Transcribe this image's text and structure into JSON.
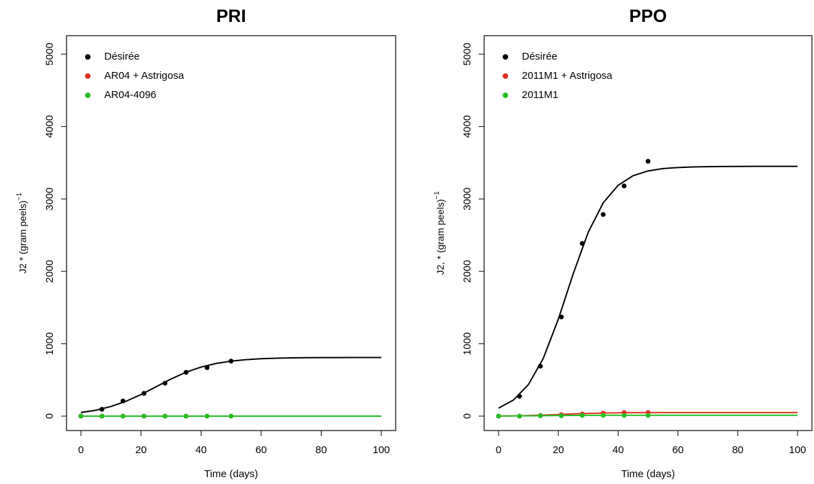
{
  "chart_data": [
    {
      "type": "line",
      "title": "PRI",
      "xlabel": "Time (days)",
      "ylabel": "J2 * (gram peels)",
      "ylabel_sup": "−1",
      "xlim": [
        0,
        100
      ],
      "xticks": [
        0,
        20,
        40,
        60,
        80,
        100
      ],
      "ylim": [
        0,
        5000
      ],
      "yticks": [
        0,
        1000,
        2000,
        3000,
        4000,
        5000
      ],
      "grid": false,
      "legend": "top-left",
      "x": [
        0,
        7,
        14,
        21,
        28,
        35,
        42,
        50
      ],
      "fit_x": [
        0,
        5,
        10,
        15,
        20,
        25,
        30,
        35,
        40,
        45,
        50,
        55,
        60,
        65,
        70,
        75,
        80,
        85,
        90,
        95,
        100
      ],
      "series": [
        {
          "name": "Désirée",
          "color": "#000000",
          "values": [
            0,
            95,
            210,
            315,
            455,
            605,
            670,
            760
          ],
          "fit": [
            50,
            82,
            133,
            205,
            298,
            405,
            513,
            607,
            678,
            728,
            760,
            780,
            793,
            800,
            805,
            807,
            808,
            809,
            810,
            810,
            810
          ]
        },
        {
          "name": "AR04 + Astrigosa",
          "color": "#e03020",
          "values": [
            0,
            0,
            0,
            0,
            0,
            0,
            0,
            0
          ],
          "fit": [
            0,
            0,
            0,
            0,
            0,
            0,
            0,
            0,
            0,
            0,
            0,
            0,
            0,
            0,
            0,
            0,
            0,
            0,
            0,
            0,
            0
          ]
        },
        {
          "name": "AR04-4096",
          "color": "#22c022",
          "values": [
            0,
            0,
            0,
            0,
            0,
            0,
            0,
            0
          ],
          "fit": [
            0,
            0,
            0,
            0,
            0,
            0,
            0,
            0,
            0,
            0,
            0,
            0,
            0,
            0,
            0,
            0,
            0,
            0,
            0,
            0,
            0
          ]
        }
      ]
    },
    {
      "type": "line",
      "title": "PPO",
      "xlabel": "Time (days)",
      "ylabel": "J2, * (gram peels)",
      "ylabel_sup": "−1",
      "xlim": [
        0,
        100
      ],
      "xticks": [
        0,
        20,
        40,
        60,
        80,
        100
      ],
      "ylim": [
        0,
        5000
      ],
      "yticks": [
        0,
        1000,
        2000,
        3000,
        4000,
        5000
      ],
      "grid": false,
      "legend": "top-left",
      "x": [
        0,
        7,
        14,
        21,
        28,
        35,
        42,
        50
      ],
      "fit_x": [
        0,
        5,
        10,
        15,
        20,
        25,
        30,
        35,
        40,
        45,
        50,
        55,
        60,
        65,
        70,
        75,
        80,
        85,
        90,
        95,
        100
      ],
      "series": [
        {
          "name": "Désirée",
          "color": "#000000",
          "values": [
            0,
            275,
            690,
            1370,
            2385,
            2785,
            3180,
            3520
          ],
          "fit": [
            110,
            223,
            436,
            802,
            1340,
            1970,
            2540,
            2946,
            3189,
            3321,
            3387,
            3420,
            3434,
            3442,
            3446,
            3448,
            3449,
            3450,
            3450,
            3450,
            3450
          ]
        },
        {
          "name": "2011M1 + Astrigosa",
          "color": "#e03020",
          "values": [
            0,
            0,
            10,
            20,
            30,
            40,
            50,
            50
          ],
          "fit": [
            2,
            4,
            8,
            14,
            22,
            31,
            38,
            43,
            46,
            48,
            49,
            50,
            50,
            50,
            50,
            50,
            50,
            50,
            50,
            50,
            50
          ]
        },
        {
          "name": "2011M1",
          "color": "#22c022",
          "values": [
            0,
            0,
            5,
            5,
            10,
            10,
            10,
            10
          ],
          "fit": [
            1,
            2,
            4,
            6,
            8,
            10,
            11,
            12,
            12,
            12,
            12,
            12,
            12,
            12,
            12,
            12,
            12,
            12,
            12,
            12,
            12
          ]
        }
      ]
    }
  ]
}
